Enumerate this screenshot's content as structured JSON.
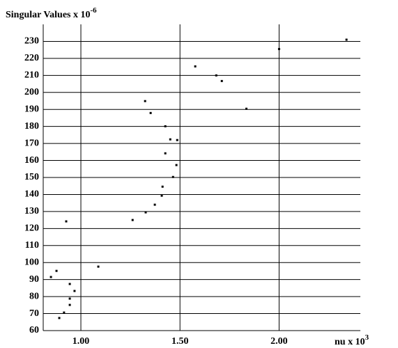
{
  "chart_data": {
    "type": "scatter",
    "title": "Singular Values x 10",
    "title_exponent": "-6",
    "x_label": "nu x 10",
    "x_label_exponent": "3",
    "x": [
      2.34,
      2.0,
      1.577,
      1.683,
      1.711,
      1.835,
      1.324,
      1.352,
      1.426,
      1.451,
      1.486,
      1.426,
      1.482,
      1.465,
      1.412,
      1.408,
      1.373,
      1.327,
      1.261,
      0.926,
      1.088,
      0.877,
      0.849,
      0.944,
      0.968,
      0.944,
      0.944,
      0.915,
      0.891
    ],
    "y": [
      231,
      225.5,
      215.3,
      210,
      206.7,
      190.4,
      194.9,
      187.9,
      180.1,
      172.4,
      172,
      164.2,
      157.3,
      150.3,
      144.6,
      139.3,
      134,
      129.5,
      125,
      124.2,
      97.6,
      95.1,
      91.5,
      87.4,
      83.3,
      78.8,
      75.1,
      70.6,
      67.4
    ],
    "color": "#000000",
    "xlim": [
      0.81,
      2.41
    ],
    "xticks": [
      {
        "value": 1,
        "label": "1.00"
      },
      {
        "value": 1.5,
        "label": "1.50"
      },
      {
        "value": 2,
        "label": "2.00"
      }
    ],
    "ylim": [
      60,
      240
    ],
    "yticks": [
      60,
      70,
      80,
      90,
      100,
      110,
      120,
      130,
      140,
      150,
      160,
      170,
      180,
      190,
      200,
      210,
      220,
      230
    ],
    "grid": true
  }
}
